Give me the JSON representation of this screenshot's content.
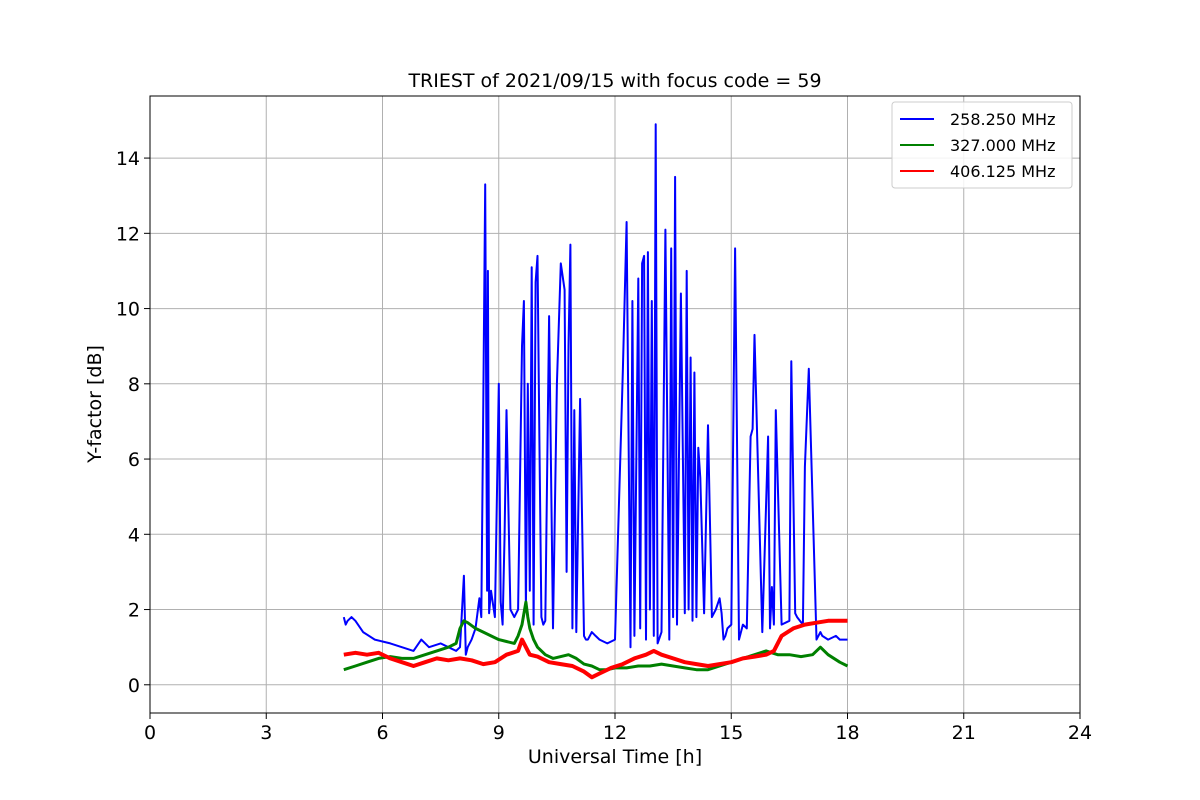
{
  "chart_data": {
    "type": "line",
    "title": "TRIEST of 2021/09/15 with focus code = 59",
    "xlabel": "Universal Time [h]",
    "ylabel": "Y-factor [dB]",
    "xlim": [
      0,
      24
    ],
    "ylim": [
      -0.75,
      15.65
    ],
    "xticks": [
      0,
      3,
      6,
      9,
      12,
      15,
      18,
      21,
      24
    ],
    "yticks": [
      0,
      2,
      4,
      6,
      8,
      10,
      12,
      14
    ],
    "grid": true,
    "legend_position": "top-right",
    "series": [
      {
        "name": "258.250 MHz",
        "color": "#0000ff",
        "x": [
          5.0,
          5.05,
          5.1,
          5.2,
          5.3,
          5.5,
          5.8,
          6.0,
          6.2,
          6.5,
          6.8,
          7.0,
          7.2,
          7.5,
          7.7,
          7.9,
          8.0,
          8.1,
          8.15,
          8.2,
          8.3,
          8.4,
          8.5,
          8.55,
          8.6,
          8.65,
          8.7,
          8.72,
          8.75,
          8.8,
          8.9,
          9.0,
          9.05,
          9.1,
          9.15,
          9.2,
          9.3,
          9.4,
          9.5,
          9.6,
          9.65,
          9.7,
          9.75,
          9.8,
          9.85,
          9.9,
          9.95,
          10.0,
          10.05,
          10.1,
          10.15,
          10.2,
          10.3,
          10.4,
          10.5,
          10.6,
          10.7,
          10.75,
          10.8,
          10.85,
          10.9,
          10.95,
          11.0,
          11.1,
          11.2,
          11.25,
          11.3,
          11.4,
          11.5,
          11.6,
          11.8,
          12.0,
          12.2,
          12.3,
          12.4,
          12.45,
          12.5,
          12.6,
          12.65,
          12.7,
          12.75,
          12.8,
          12.85,
          12.9,
          12.95,
          13.0,
          13.05,
          13.1,
          13.2,
          13.3,
          13.4,
          13.45,
          13.5,
          13.55,
          13.6,
          13.7,
          13.8,
          13.85,
          13.9,
          13.95,
          14.0,
          14.05,
          14.1,
          14.15,
          14.2,
          14.3,
          14.4,
          14.5,
          14.6,
          14.7,
          14.75,
          14.8,
          14.85,
          14.9,
          15.0,
          15.1,
          15.2,
          15.3,
          15.4,
          15.5,
          15.55,
          15.6,
          15.8,
          15.95,
          16.0,
          16.05,
          16.1,
          16.15,
          16.3,
          16.5,
          16.55,
          16.65,
          16.7,
          16.85,
          16.9,
          17.0,
          17.2,
          17.3,
          17.35,
          17.5,
          17.7,
          17.8,
          17.9,
          17.95,
          18.0
        ],
        "y": [
          1.8,
          1.6,
          1.7,
          1.8,
          1.7,
          1.4,
          1.2,
          1.15,
          1.1,
          1.0,
          0.9,
          1.2,
          1.0,
          1.1,
          1.0,
          0.9,
          1.0,
          2.9,
          0.8,
          1.0,
          1.2,
          1.5,
          2.3,
          1.8,
          7.5,
          13.3,
          2.5,
          11.0,
          1.9,
          2.5,
          1.8,
          8.0,
          2.2,
          1.6,
          4.0,
          7.3,
          2.0,
          1.8,
          2.0,
          9.0,
          10.2,
          2.0,
          8.0,
          2.5,
          11.1,
          1.6,
          10.7,
          11.4,
          6.5,
          1.8,
          1.6,
          1.7,
          9.8,
          1.5,
          8.0,
          11.2,
          10.5,
          3.0,
          9.0,
          11.7,
          1.5,
          7.3,
          1.4,
          7.6,
          1.3,
          1.2,
          1.2,
          1.4,
          1.3,
          1.2,
          1.1,
          1.2,
          8.3,
          12.3,
          1.0,
          10.2,
          1.3,
          10.8,
          1.5,
          11.2,
          11.4,
          1.2,
          11.5,
          2.0,
          10.2,
          1.3,
          14.9,
          1.1,
          1.4,
          12.1,
          1.2,
          11.6,
          1.8,
          13.5,
          1.6,
          10.4,
          1.9,
          11.0,
          2.0,
          8.7,
          1.7,
          8.3,
          1.8,
          6.3,
          5.5,
          1.9,
          6.9,
          1.8,
          2.0,
          2.3,
          1.9,
          1.2,
          1.3,
          1.5,
          1.6,
          11.6,
          1.2,
          1.6,
          1.5,
          6.6,
          6.8,
          9.3,
          1.4,
          6.6,
          1.5,
          2.6,
          1.6,
          7.3,
          1.6,
          1.7,
          8.6,
          1.9,
          1.8,
          1.6,
          5.8,
          8.4,
          1.2,
          1.4,
          1.3,
          1.2,
          1.3,
          1.2,
          1.2,
          1.2,
          1.2
        ]
      },
      {
        "name": "327.000 MHz",
        "color": "#008000",
        "x": [
          5.0,
          5.3,
          5.6,
          5.9,
          6.2,
          6.5,
          6.8,
          7.1,
          7.4,
          7.7,
          7.9,
          8.0,
          8.1,
          8.2,
          8.4,
          8.6,
          8.8,
          9.0,
          9.2,
          9.4,
          9.5,
          9.6,
          9.7,
          9.75,
          9.8,
          9.9,
          10.0,
          10.2,
          10.4,
          10.6,
          10.8,
          11.0,
          11.2,
          11.4,
          11.6,
          11.8,
          12.0,
          12.3,
          12.6,
          12.9,
          13.2,
          13.5,
          13.8,
          14.1,
          14.4,
          14.7,
          15.0,
          15.3,
          15.6,
          15.9,
          16.2,
          16.5,
          16.8,
          17.1,
          17.3,
          17.5,
          17.8,
          18.0
        ],
        "y": [
          0.4,
          0.5,
          0.6,
          0.7,
          0.75,
          0.7,
          0.7,
          0.8,
          0.9,
          1.0,
          1.1,
          1.5,
          1.7,
          1.65,
          1.5,
          1.4,
          1.3,
          1.2,
          1.15,
          1.1,
          1.3,
          1.6,
          2.2,
          1.8,
          1.5,
          1.2,
          1.0,
          0.8,
          0.7,
          0.75,
          0.8,
          0.7,
          0.55,
          0.5,
          0.4,
          0.4,
          0.45,
          0.45,
          0.5,
          0.5,
          0.55,
          0.5,
          0.45,
          0.4,
          0.4,
          0.5,
          0.6,
          0.7,
          0.8,
          0.9,
          0.8,
          0.8,
          0.75,
          0.8,
          1.0,
          0.8,
          0.6,
          0.5
        ]
      },
      {
        "name": "406.125 MHz",
        "color": "#ff0000",
        "x": [
          5.0,
          5.3,
          5.6,
          5.9,
          6.2,
          6.5,
          6.8,
          7.1,
          7.4,
          7.7,
          8.0,
          8.3,
          8.6,
          8.9,
          9.2,
          9.5,
          9.6,
          9.8,
          10.0,
          10.3,
          10.6,
          10.9,
          11.2,
          11.4,
          11.6,
          11.9,
          12.2,
          12.5,
          12.8,
          13.0,
          13.2,
          13.5,
          13.8,
          14.1,
          14.4,
          14.7,
          15.0,
          15.3,
          15.6,
          15.9,
          16.1,
          16.3,
          16.6,
          16.9,
          17.2,
          17.5,
          17.8,
          18.0
        ],
        "y": [
          0.8,
          0.85,
          0.8,
          0.85,
          0.7,
          0.6,
          0.5,
          0.6,
          0.7,
          0.65,
          0.7,
          0.65,
          0.55,
          0.6,
          0.8,
          0.9,
          1.2,
          0.8,
          0.75,
          0.6,
          0.55,
          0.5,
          0.35,
          0.2,
          0.3,
          0.45,
          0.55,
          0.7,
          0.8,
          0.9,
          0.8,
          0.7,
          0.6,
          0.55,
          0.5,
          0.55,
          0.6,
          0.7,
          0.75,
          0.8,
          0.9,
          1.3,
          1.5,
          1.6,
          1.65,
          1.7,
          1.7,
          1.7
        ]
      }
    ]
  }
}
